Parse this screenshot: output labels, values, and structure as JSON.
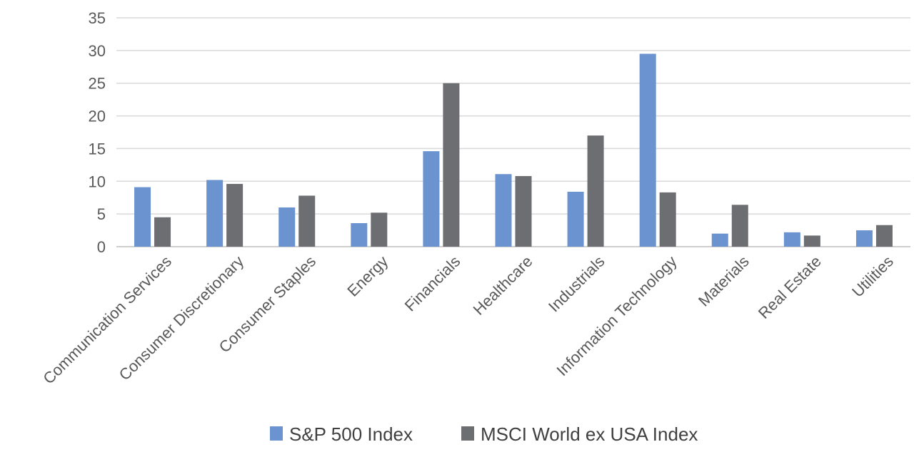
{
  "chart_data": {
    "type": "bar",
    "title": "",
    "xlabel": "",
    "ylabel": "",
    "ylim": [
      0,
      35
    ],
    "yticks": [
      0,
      5,
      10,
      15,
      20,
      25,
      30,
      35
    ],
    "grid": true,
    "legend_position": "bottom",
    "categories": [
      "Communication Services",
      "Consumer Discretionary",
      "Consumer Staples",
      "Energy",
      "Financials",
      "Healthcare",
      "Industrials",
      "Information Technology",
      "Materials",
      "Real Estate",
      "Utilities"
    ],
    "series": [
      {
        "name": "S&P 500 Index",
        "color": "#6a93cf",
        "values": [
          9.1,
          10.2,
          6.0,
          3.6,
          14.6,
          11.1,
          8.4,
          29.5,
          2.0,
          2.2,
          2.5
        ]
      },
      {
        "name": "MSCI World ex USA Index",
        "color": "#6d6e71",
        "values": [
          4.5,
          9.6,
          7.8,
          5.2,
          25.0,
          10.8,
          17.0,
          8.3,
          6.4,
          1.7,
          3.3
        ]
      }
    ]
  }
}
